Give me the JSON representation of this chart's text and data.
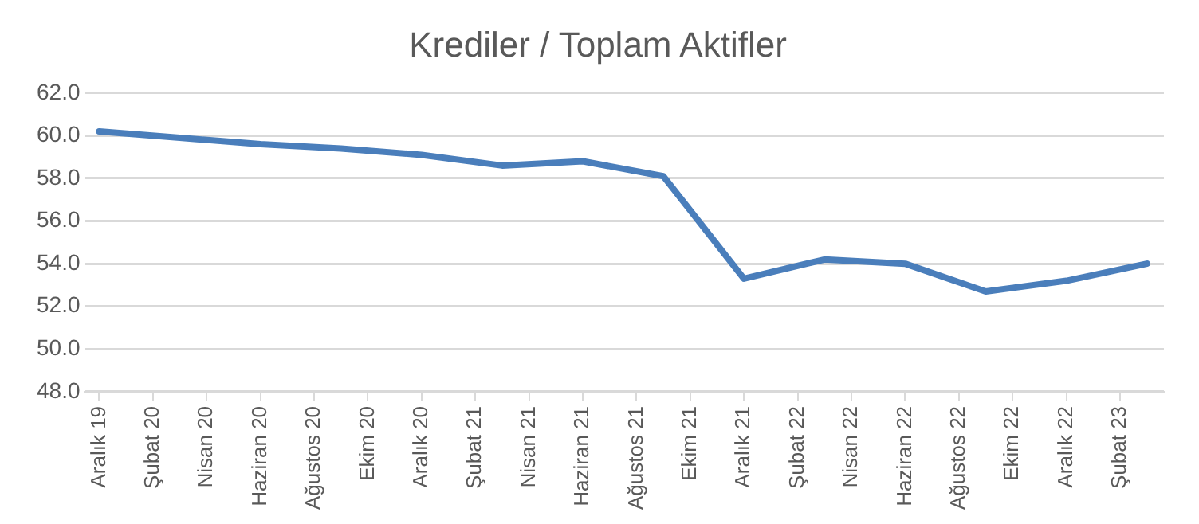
{
  "chart_data": {
    "type": "line",
    "title": "Krediler / Toplam Aktifler",
    "x": [
      "2019-12",
      "2020-03",
      "2020-06",
      "2020-09",
      "2020-12",
      "2021-03",
      "2021-06",
      "2021-09",
      "2021-12",
      "2022-03",
      "2022-06",
      "2022-09",
      "2022-12",
      "2023-03"
    ],
    "series": [
      {
        "color": "#4a7ebb",
        "values": [
          60.2,
          59.9,
          59.6,
          59.4,
          59.1,
          58.6,
          58.8,
          58.1,
          53.3,
          54.2,
          54.0,
          52.7,
          53.2,
          54.0
        ]
      }
    ],
    "xlim": [
      "2019-11-15",
      "2023-03-20"
    ],
    "xticks": [
      {
        "value": "2019-12",
        "label": "Aralık 19"
      },
      {
        "value": "2020-02",
        "label": "Şubat 20"
      },
      {
        "value": "2020-04",
        "label": "Nisan 20"
      },
      {
        "value": "2020-06",
        "label": "Haziran 20"
      },
      {
        "value": "2020-08",
        "label": "Ağustos 20"
      },
      {
        "value": "2020-10",
        "label": "Ekim 20"
      },
      {
        "value": "2020-12",
        "label": "Aralık 20"
      },
      {
        "value": "2021-02",
        "label": "Şubat 21"
      },
      {
        "value": "2021-04",
        "label": "Nisan 21"
      },
      {
        "value": "2021-06",
        "label": "Haziran 21"
      },
      {
        "value": "2021-08",
        "label": "Ağustos 21"
      },
      {
        "value": "2021-10",
        "label": "Ekim 21"
      },
      {
        "value": "2021-12",
        "label": "Aralık 21"
      },
      {
        "value": "2022-02",
        "label": "Şubat 22"
      },
      {
        "value": "2022-04",
        "label": "Nisan 22"
      },
      {
        "value": "2022-06",
        "label": "Haziran 22"
      },
      {
        "value": "2022-08",
        "label": "Ağustos 22"
      },
      {
        "value": "2022-10",
        "label": "Ekim 22"
      },
      {
        "value": "2022-12",
        "label": "Aralık 22"
      },
      {
        "value": "2023-02",
        "label": "Şubat 23"
      }
    ],
    "ylim": [
      48,
      62
    ],
    "yticks": [
      {
        "value": 48,
        "label": "48.0"
      },
      {
        "value": 50,
        "label": "50.0"
      },
      {
        "value": 52,
        "label": "52.0"
      },
      {
        "value": 54,
        "label": "54.0"
      },
      {
        "value": 56,
        "label": "56.0"
      },
      {
        "value": 58,
        "label": "58.0"
      },
      {
        "value": 60,
        "label": "60.0"
      },
      {
        "value": 62,
        "label": "62.0"
      }
    ],
    "grid": "y",
    "legend": false,
    "marker": "none",
    "line_style": "solid"
  }
}
